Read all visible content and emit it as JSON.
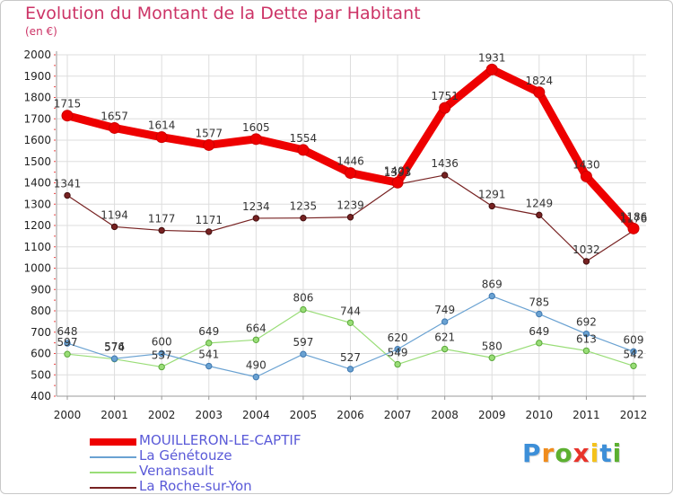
{
  "chart_data": {
    "type": "line",
    "title": "Evolution du Montant de la Dette par Habitant",
    "subtitle": "(en €)",
    "xlabel": "",
    "ylabel": "",
    "x": [
      "2000",
      "2001",
      "2002",
      "2003",
      "2004",
      "2005",
      "2006",
      "2007",
      "2008",
      "2009",
      "2010",
      "2011",
      "2012"
    ],
    "ylim": [
      400,
      2000
    ],
    "yticks": [
      400,
      500,
      600,
      700,
      800,
      900,
      1000,
      1100,
      1200,
      1300,
      1400,
      1500,
      1600,
      1700,
      1800,
      1900,
      2000
    ],
    "grid": true,
    "legend_position": "bottom-left",
    "series": [
      {
        "name": "MOUILLERON-LE-CAPTIF",
        "color": "#ee0000",
        "values": [
          1715,
          1657,
          1614,
          1577,
          1605,
          1554,
          1446,
          1401,
          1751,
          1931,
          1824,
          1430,
          1186
        ]
      },
      {
        "name": "La Génétouze",
        "color": "#6aa2d2",
        "values": [
          648,
          576,
          600,
          541,
          490,
          597,
          527,
          620,
          749,
          869,
          785,
          692,
          609
        ]
      },
      {
        "name": "Venansault",
        "color": "#99dd77",
        "values": [
          597,
          574,
          537,
          649,
          664,
          806,
          744,
          549,
          621,
          580,
          649,
          613,
          542
        ]
      },
      {
        "name": "La Roche-sur-Yon",
        "color": "#772222",
        "values": [
          1341,
          1194,
          1177,
          1171,
          1234,
          1235,
          1239,
          1393,
          1436,
          1291,
          1249,
          1032,
          1176
        ]
      }
    ]
  },
  "brand": {
    "letters": [
      {
        "ch": "P",
        "color": "#3d8fd8"
      },
      {
        "ch": "r",
        "color": "#f08c1c"
      },
      {
        "ch": "o",
        "color": "#5cb030"
      },
      {
        "ch": "x",
        "color": "#e8332a"
      },
      {
        "ch": "i",
        "color": "#f4c21c"
      },
      {
        "ch": "t",
        "color": "#3d8fd8"
      },
      {
        "ch": "i",
        "color": "#5cb030"
      }
    ]
  }
}
